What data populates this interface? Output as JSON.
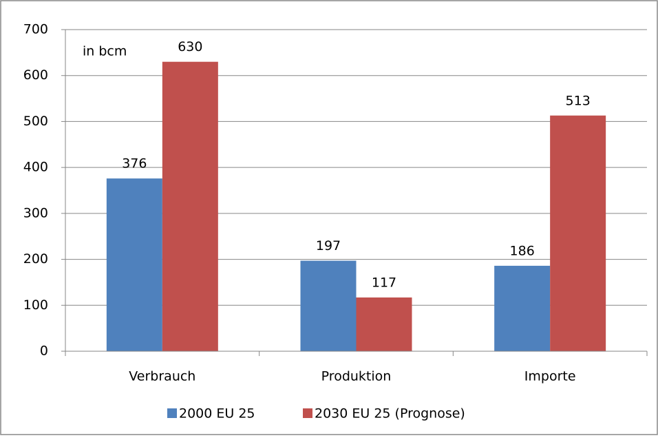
{
  "chart_data": {
    "type": "bar",
    "annotation": "in bcm",
    "categories": [
      "Verbrauch",
      "Produktion",
      "Importe"
    ],
    "series": [
      {
        "name": "2000 EU 25",
        "color": "#4f81bd",
        "values": [
          376,
          197,
          186
        ]
      },
      {
        "name": "2030 EU 25 (Prognose)",
        "color": "#c0504d",
        "values": [
          630,
          117,
          513
        ]
      }
    ],
    "ylim": [
      0,
      700
    ],
    "yticks": [
      0,
      100,
      200,
      300,
      400,
      500,
      600,
      700
    ],
    "grid": true,
    "legend": "bottom",
    "data_labels": true
  }
}
